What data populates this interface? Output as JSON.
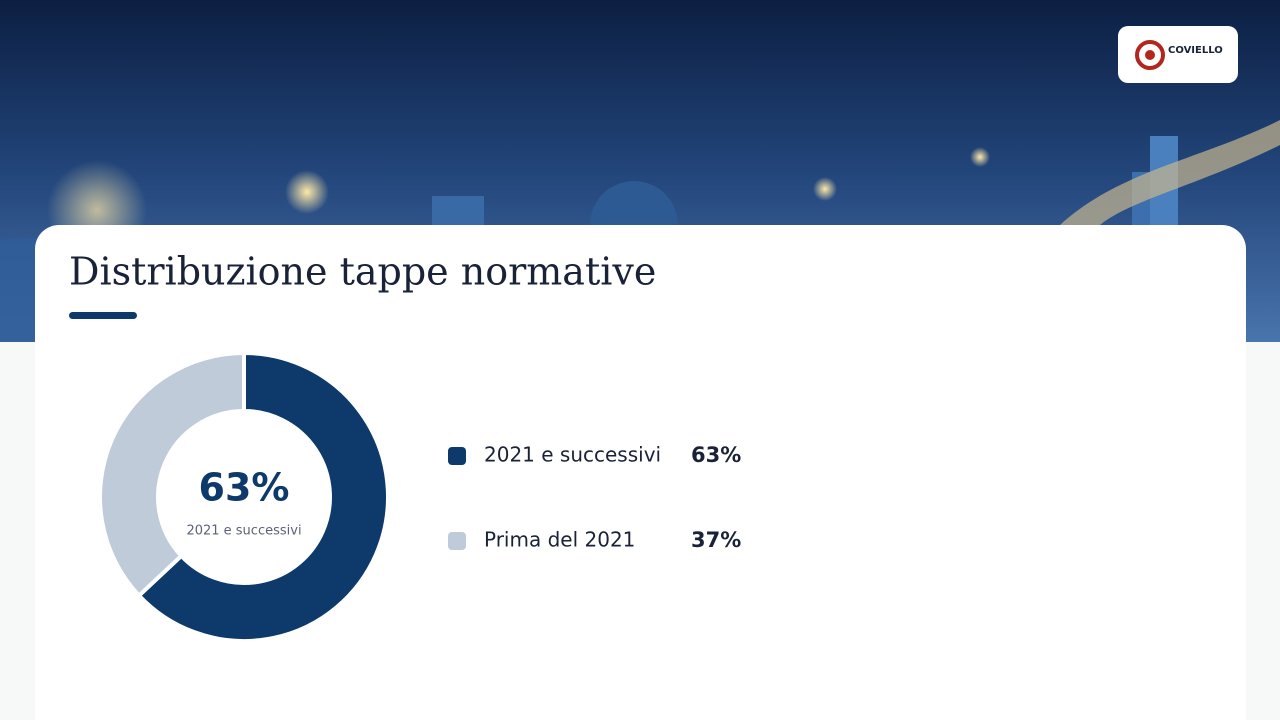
{
  "logo": "COVIELLO",
  "chart_data": {
    "type": "donut",
    "title": "Distribuzione tappe normative",
    "categories": [
      "2021 e successivi",
      "Prima del 2021"
    ],
    "values": [
      63,
      37
    ],
    "value_labels": [
      "63%",
      "37%"
    ],
    "colors": [
      "#0d3a6b",
      "#bfcbd9"
    ]
  }
}
